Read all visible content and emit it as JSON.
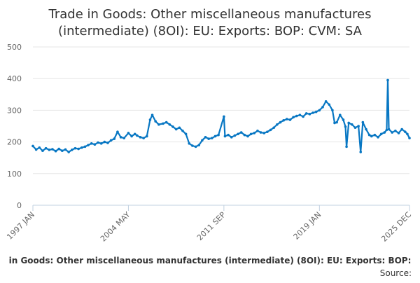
{
  "chart_data": {
    "type": "line",
    "title_lines": [
      "Trade in Goods: Other miscellaneous manufactures",
      "(intermediate) (8OI): EU: Exports: BOP: CVM: SA"
    ],
    "xlabel": "",
    "ylabel": "",
    "x_ticks": [
      "1997 JAN",
      "2004 MAY",
      "2011 SEP",
      "2019 JAN",
      "2025 DEC"
    ],
    "x_range": [
      "1997 JAN",
      "2025 DEC"
    ],
    "ylim": [
      0,
      500
    ],
    "y_ticks": [
      0,
      100,
      200,
      300,
      400,
      500
    ],
    "grid": "horizontal",
    "color": "#0877c3",
    "series": [
      {
        "name": "Trade in Goods: Other miscellaneous manufactures (intermediate) (8OI): EU: Exports: BOP: CVM: SA",
        "points": [
          [
            "1997-01",
            187
          ],
          [
            "1997-04",
            176
          ],
          [
            "1997-07",
            182
          ],
          [
            "1997-10",
            172
          ],
          [
            "1998-01",
            180
          ],
          [
            "1998-04",
            175
          ],
          [
            "1998-07",
            177
          ],
          [
            "1998-10",
            171
          ],
          [
            "1999-01",
            178
          ],
          [
            "1999-04",
            172
          ],
          [
            "1999-07",
            176
          ],
          [
            "1999-10",
            168
          ],
          [
            "2000-01",
            175
          ],
          [
            "2000-04",
            180
          ],
          [
            "2000-07",
            178
          ],
          [
            "2000-10",
            182
          ],
          [
            "2001-01",
            185
          ],
          [
            "2001-04",
            190
          ],
          [
            "2001-07",
            195
          ],
          [
            "2001-10",
            192
          ],
          [
            "2002-01",
            198
          ],
          [
            "2002-04",
            195
          ],
          [
            "2002-07",
            200
          ],
          [
            "2002-10",
            197
          ],
          [
            "2003-01",
            205
          ],
          [
            "2003-04",
            210
          ],
          [
            "2003-07",
            232
          ],
          [
            "2003-10",
            215
          ],
          [
            "2004-01",
            212
          ],
          [
            "2004-05",
            228
          ],
          [
            "2004-08",
            218
          ],
          [
            "2004-11",
            225
          ],
          [
            "2005-01",
            220
          ],
          [
            "2005-04",
            215
          ],
          [
            "2005-07",
            212
          ],
          [
            "2005-10",
            218
          ],
          [
            "2006-01",
            270
          ],
          [
            "2006-03",
            285
          ],
          [
            "2006-06",
            265
          ],
          [
            "2006-09",
            255
          ],
          [
            "2007-01",
            258
          ],
          [
            "2007-04",
            262
          ],
          [
            "2007-07",
            255
          ],
          [
            "2007-10",
            248
          ],
          [
            "2008-01",
            240
          ],
          [
            "2008-04",
            245
          ],
          [
            "2008-07",
            235
          ],
          [
            "2008-10",
            225
          ],
          [
            "2009-01",
            195
          ],
          [
            "2009-04",
            188
          ],
          [
            "2009-07",
            185
          ],
          [
            "2009-10",
            190
          ],
          [
            "2010-01",
            205
          ],
          [
            "2010-04",
            215
          ],
          [
            "2010-07",
            210
          ],
          [
            "2010-10",
            212
          ],
          [
            "2011-01",
            218
          ],
          [
            "2011-04",
            222
          ],
          [
            "2011-09",
            280
          ],
          [
            "2011-10",
            218
          ],
          [
            "2012-01",
            222
          ],
          [
            "2012-04",
            215
          ],
          [
            "2012-07",
            220
          ],
          [
            "2012-10",
            225
          ],
          [
            "2013-01",
            230
          ],
          [
            "2013-04",
            222
          ],
          [
            "2013-07",
            218
          ],
          [
            "2013-10",
            225
          ],
          [
            "2014-01",
            228
          ],
          [
            "2014-04",
            235
          ],
          [
            "2014-07",
            230
          ],
          [
            "2014-10",
            228
          ],
          [
            "2015-01",
            232
          ],
          [
            "2015-04",
            238
          ],
          [
            "2015-07",
            245
          ],
          [
            "2015-10",
            255
          ],
          [
            "2016-01",
            262
          ],
          [
            "2016-04",
            268
          ],
          [
            "2016-07",
            272
          ],
          [
            "2016-10",
            270
          ],
          [
            "2017-01",
            278
          ],
          [
            "2017-04",
            282
          ],
          [
            "2017-07",
            285
          ],
          [
            "2017-10",
            280
          ],
          [
            "2018-01",
            290
          ],
          [
            "2018-04",
            288
          ],
          [
            "2018-07",
            292
          ],
          [
            "2018-10",
            295
          ],
          [
            "2019-01",
            300
          ],
          [
            "2019-04",
            310
          ],
          [
            "2019-07",
            328
          ],
          [
            "2019-10",
            318
          ],
          [
            "2020-01",
            300
          ],
          [
            "2020-03",
            260
          ],
          [
            "2020-05",
            262
          ],
          [
            "2020-08",
            285
          ],
          [
            "2020-11",
            270
          ],
          [
            "2021-01",
            248
          ],
          [
            "2021-02",
            185
          ],
          [
            "2021-04",
            260
          ],
          [
            "2021-07",
            255
          ],
          [
            "2021-10",
            245
          ],
          [
            "2022-01",
            250
          ],
          [
            "2022-03",
            168
          ],
          [
            "2022-05",
            262
          ],
          [
            "2022-08",
            240
          ],
          [
            "2022-11",
            222
          ],
          [
            "2023-01",
            218
          ],
          [
            "2023-04",
            222
          ],
          [
            "2023-07",
            215
          ],
          [
            "2023-10",
            225
          ],
          [
            "2024-01",
            230
          ],
          [
            "2024-03",
            238
          ],
          [
            "2024-04",
            395
          ],
          [
            "2024-05",
            240
          ],
          [
            "2024-08",
            230
          ],
          [
            "2024-11",
            235
          ],
          [
            "2025-02",
            228
          ],
          [
            "2025-05",
            240
          ],
          [
            "2025-08",
            232
          ],
          [
            "2025-10",
            225
          ],
          [
            "2025-12",
            212
          ]
        ]
      }
    ],
    "legend_text": "in Goods: Other miscellaneous manufactures (intermediate) (8OI): EU: Exports: BOP:",
    "source_label": "Source:"
  }
}
